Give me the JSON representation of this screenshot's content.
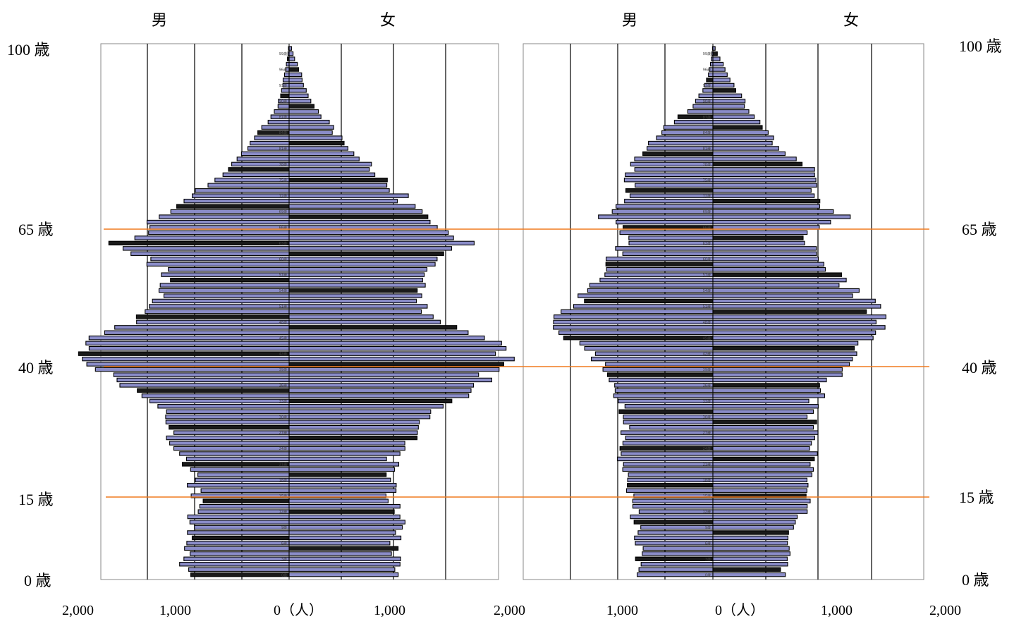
{
  "labels": {
    "male": "男",
    "female": "女",
    "age_100": "100 歳",
    "age_65": "65 歳",
    "age_40": "40 歳",
    "age_15": "15 歳",
    "age_0": "0 歳",
    "x_ticks_left": [
      "2,000",
      "1,000",
      "0（人）",
      "1,000",
      "2,000"
    ],
    "x_ticks_right": [
      "1,000",
      "0（人）",
      "1,000",
      "2,000"
    ]
  },
  "colors": {
    "bar_fill": "#8a8cc8",
    "bar_edge": "#000000",
    "ref_line": "#f07a1e",
    "frame": "#888888"
  },
  "chart_data": [
    {
      "type": "bar",
      "orientation": "horizontal",
      "population_pyramid": true,
      "age_range": [
        0,
        100
      ],
      "xlim": [
        -2000,
        2000
      ],
      "reference_ages": [
        15,
        40,
        65
      ],
      "gridlines_at": [
        -1800,
        -1200,
        -600,
        0,
        600,
        1200,
        1800
      ],
      "series": [
        {
          "name": "男",
          "anchors": [
            [
              0,
              -900
            ],
            [
              10,
              -860
            ],
            [
              14,
              -780
            ],
            [
              18,
              -820
            ],
            [
              22,
              -870
            ],
            [
              24,
              -980
            ],
            [
              28,
              -1050
            ],
            [
              32,
              -1120
            ],
            [
              34,
              -1230
            ],
            [
              37,
              -1500
            ],
            [
              39,
              -1700
            ],
            [
              41,
              -1800
            ],
            [
              43,
              -1750
            ],
            [
              45,
              -1600
            ],
            [
              47,
              -1420
            ],
            [
              49,
              -1240
            ],
            [
              51,
              -1150
            ],
            [
              54,
              -1050
            ],
            [
              57,
              -1050
            ],
            [
              60,
              -1200
            ],
            [
              63,
              -1450
            ],
            [
              65,
              -1200
            ],
            [
              67,
              -1180
            ],
            [
              70,
              -920
            ],
            [
              72,
              -850
            ],
            [
              75,
              -650
            ],
            [
              78,
              -500
            ],
            [
              80,
              -380
            ],
            [
              83,
              -300
            ],
            [
              86,
              -180
            ],
            [
              89,
              -100
            ],
            [
              92,
              -65
            ],
            [
              95,
              -40
            ],
            [
              98,
              -15
            ],
            [
              100,
              -5
            ]
          ]
        },
        {
          "name": "女",
          "anchors": [
            [
              0,
              900
            ],
            [
              10,
              930
            ],
            [
              14,
              870
            ],
            [
              18,
              860
            ],
            [
              22,
              880
            ],
            [
              24,
              990
            ],
            [
              28,
              1100
            ],
            [
              32,
              1230
            ],
            [
              34,
              1500
            ],
            [
              37,
              1680
            ],
            [
              39,
              1770
            ],
            [
              41,
              1820
            ],
            [
              43,
              1780
            ],
            [
              45,
              1650
            ],
            [
              47,
              1450
            ],
            [
              49,
              1260
            ],
            [
              51,
              1150
            ],
            [
              54,
              1100
            ],
            [
              57,
              1100
            ],
            [
              60,
              1250
            ],
            [
              63,
              1500
            ],
            [
              65,
              1300
            ],
            [
              67,
              1180
            ],
            [
              70,
              1020
            ],
            [
              72,
              950
            ],
            [
              75,
              820
            ],
            [
              78,
              680
            ],
            [
              80,
              550
            ],
            [
              83,
              430
            ],
            [
              86,
              320
            ],
            [
              89,
              200
            ],
            [
              92,
              140
            ],
            [
              95,
              100
            ],
            [
              98,
              50
            ],
            [
              100,
              20
            ]
          ]
        }
      ]
    },
    {
      "type": "bar",
      "orientation": "horizontal",
      "population_pyramid": true,
      "age_range": [
        0,
        100
      ],
      "xlim": [
        -2000,
        2000
      ],
      "reference_ages": [
        15,
        40,
        65
      ],
      "gridlines_at": [
        -1800,
        -1200,
        -600,
        0,
        600,
        1200,
        1800
      ],
      "series": [
        {
          "name": "男",
          "anchors": [
            [
              0,
              -900
            ],
            [
              8,
              -940
            ],
            [
              13,
              -1000
            ],
            [
              17,
              -1060
            ],
            [
              21,
              -1120
            ],
            [
              24,
              -1150
            ],
            [
              27,
              -1130
            ],
            [
              30,
              -1110
            ],
            [
              33,
              -1150
            ],
            [
              36,
              -1260
            ],
            [
              38,
              -1400
            ],
            [
              40,
              -1450
            ],
            [
              43,
              -1600
            ],
            [
              46,
              -1880
            ],
            [
              48,
              -1970
            ],
            [
              50,
              -1900
            ],
            [
              52,
              -1660
            ],
            [
              54,
              -1580
            ],
            [
              56,
              -1400
            ],
            [
              58,
              -1280
            ],
            [
              60,
              -1280
            ],
            [
              62,
              -1150
            ],
            [
              64,
              -1100
            ],
            [
              66,
              -1200
            ],
            [
              68,
              -1400
            ],
            [
              70,
              -1220
            ],
            [
              72,
              -1050
            ],
            [
              75,
              -1050
            ],
            [
              78,
              -1000
            ],
            [
              80,
              -860
            ],
            [
              83,
              -740
            ],
            [
              86,
              -500
            ],
            [
              89,
              -260
            ],
            [
              92,
              -130
            ],
            [
              95,
              -60
            ],
            [
              98,
              -20
            ],
            [
              100,
              -5
            ]
          ]
        },
        {
          "name": "女",
          "anchors": [
            [
              0,
              880
            ],
            [
              8,
              960
            ],
            [
              13,
              1150
            ],
            [
              17,
              1230
            ],
            [
              21,
              1270
            ],
            [
              24,
              1280
            ],
            [
              27,
              1250
            ],
            [
              30,
              1220
            ],
            [
              33,
              1280
            ],
            [
              36,
              1420
            ],
            [
              38,
              1560
            ],
            [
              40,
              1660
            ],
            [
              43,
              1850
            ],
            [
              46,
              2000
            ],
            [
              48,
              2080
            ],
            [
              50,
              2070
            ],
            [
              52,
              1920
            ],
            [
              54,
              1740
            ],
            [
              56,
              1620
            ],
            [
              58,
              1450
            ],
            [
              60,
              1260
            ],
            [
              62,
              1220
            ],
            [
              64,
              1160
            ],
            [
              66,
              1280
            ],
            [
              68,
              1700
            ],
            [
              70,
              1350
            ],
            [
              72,
              1230
            ],
            [
              75,
              1300
            ],
            [
              78,
              1160
            ],
            [
              80,
              930
            ],
            [
              83,
              720
            ],
            [
              86,
              560
            ],
            [
              89,
              420
            ],
            [
              92,
              300
            ],
            [
              95,
              190
            ],
            [
              98,
              90
            ],
            [
              100,
              30
            ]
          ]
        }
      ]
    }
  ]
}
